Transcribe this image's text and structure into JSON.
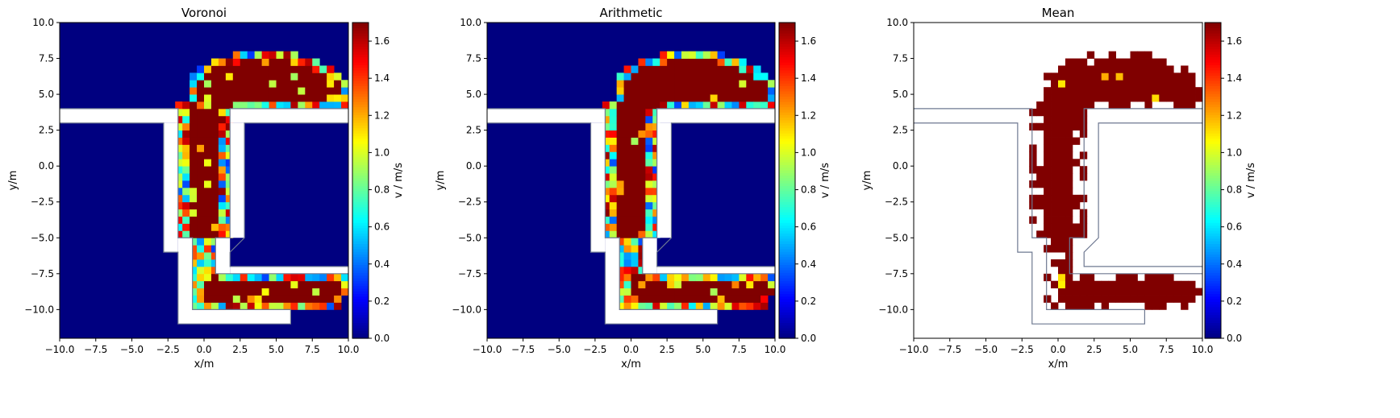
{
  "chart_data": [
    {
      "type": "heatmap",
      "title": "Voronoi",
      "xlabel": "x/m",
      "ylabel": "y/m",
      "xlim": [
        -10,
        10
      ],
      "ylim": [
        -12,
        10
      ],
      "xticks": [
        "−10.0",
        "−7.5",
        "−5.0",
        "−2.5",
        "0.0",
        "2.5",
        "5.0",
        "7.5",
        "10.0"
      ],
      "yticks": [
        "−10.0",
        "−7.5",
        "−5.0",
        "−2.5",
        "0.0",
        "2.5",
        "5.0",
        "7.5",
        "10.0"
      ],
      "background_value": 0.0,
      "main_value": 1.7,
      "colorbar": {
        "label": "v / m/s",
        "range": [
          0.0,
          1.7
        ],
        "ticks": [
          "0.0",
          "0.2",
          "0.4",
          "0.6",
          "0.8",
          "1.0",
          "1.2",
          "1.4",
          "1.6"
        ],
        "colormap": "jet"
      }
    },
    {
      "type": "heatmap",
      "title": "Arithmetic",
      "xlabel": "x/m",
      "ylabel": "y/m",
      "xlim": [
        -10,
        10
      ],
      "ylim": [
        -12,
        10
      ],
      "xticks": [
        "−10.0",
        "−7.5",
        "−5.0",
        "−2.5",
        "0.0",
        "2.5",
        "5.0",
        "7.5",
        "10.0"
      ],
      "yticks": [
        "−10.0",
        "−7.5",
        "−5.0",
        "−2.5",
        "0.0",
        "2.5",
        "5.0",
        "7.5",
        "10.0"
      ],
      "background_value": 0.0,
      "main_value": 1.7,
      "colorbar": {
        "label": "v / m/s",
        "range": [
          0.0,
          1.7
        ],
        "ticks": [
          "0.0",
          "0.2",
          "0.4",
          "0.6",
          "0.8",
          "1.0",
          "1.2",
          "1.4",
          "1.6"
        ],
        "colormap": "jet"
      }
    },
    {
      "type": "heatmap",
      "title": "Mean",
      "xlabel": "x/m",
      "ylabel": "y/m",
      "xlim": [
        -10,
        10
      ],
      "ylim": [
        -12,
        10
      ],
      "xticks": [
        "−10.0",
        "−7.5",
        "−5.0",
        "−2.5",
        "0.0",
        "2.5",
        "5.0",
        "7.5",
        "10.0"
      ],
      "yticks": [
        "−10.0",
        "−7.5",
        "−5.0",
        "−2.5",
        "0.0",
        "2.5",
        "5.0",
        "7.5",
        "10.0"
      ],
      "background_value": null,
      "main_value": 1.7,
      "colorbar": {
        "label": "v / m/s",
        "range": [
          0.0,
          1.7
        ],
        "ticks": [
          "0.0",
          "0.2",
          "0.4",
          "0.6",
          "0.8",
          "1.0",
          "1.2",
          "1.4",
          "1.6"
        ],
        "colormap": "jet"
      }
    }
  ],
  "colors": {
    "background_cell": "#00007f",
    "main_cell": "#7f0000",
    "geometry_outline": "#6e7891",
    "geometry_fill": "#ffffff"
  }
}
